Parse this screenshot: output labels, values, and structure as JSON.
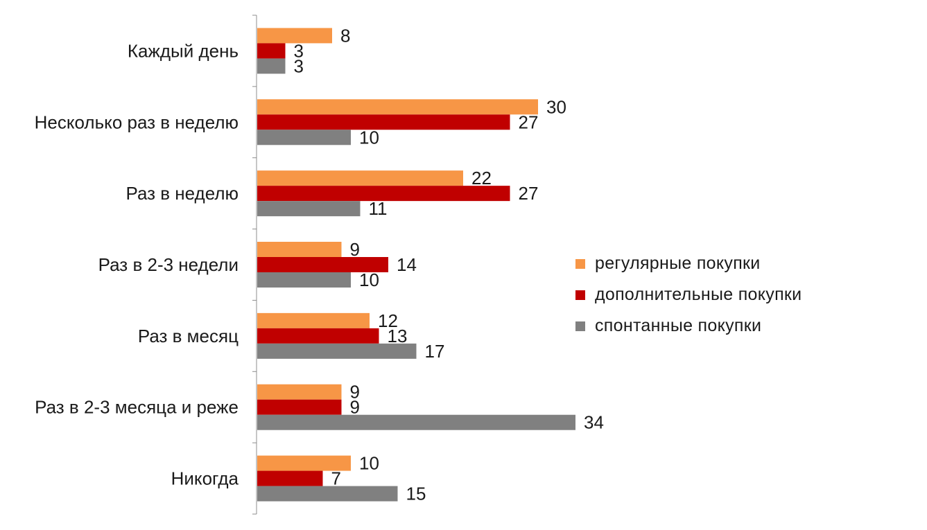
{
  "chart_data": {
    "type": "bar",
    "orientation": "horizontal",
    "categories": [
      "Каждый день",
      "Несколько раз в неделю",
      "Раз в неделю",
      "Раз в 2-3 недели",
      "Раз в месяц",
      "Раз в 2-3 месяца и реже",
      "Никогда"
    ],
    "series": [
      {
        "name": "регулярные покупки",
        "color": "#f79646",
        "values": [
          8,
          30,
          22,
          9,
          12,
          9,
          10
        ]
      },
      {
        "name": "дополнительные покупки",
        "color": "#c00000",
        "values": [
          3,
          27,
          27,
          14,
          13,
          9,
          7
        ]
      },
      {
        "name": "спонтанные покупки",
        "color": "#808080",
        "values": [
          3,
          10,
          11,
          10,
          17,
          34,
          15
        ]
      }
    ],
    "xlim": [
      0,
      34
    ],
    "grid": false,
    "legend_position": "right"
  }
}
